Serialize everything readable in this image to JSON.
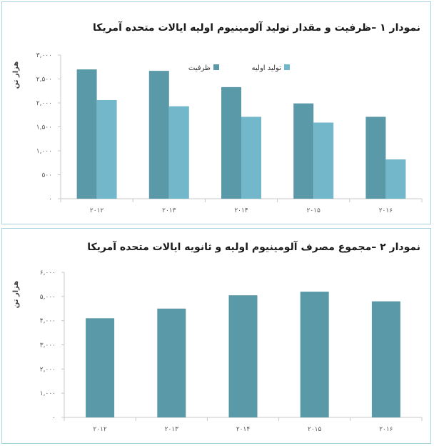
{
  "colors": {
    "series1": "#5a99a8",
    "series2": "#73b7cb",
    "single": "#5a99a8",
    "axis": "#c8c8c8",
    "border": "#a9d3de"
  },
  "chart_data": [
    {
      "type": "bar",
      "title": "نمودار ۱ –ظرفیت و مقدار تولید آلومینیوم اولیه ایالات متحده آمریکا",
      "ylabel": "هزار تن",
      "categories": [
        "۲۰۱۲",
        "۲۰۱۳",
        "۲۰۱۴",
        "۲۰۱۵",
        "۲۰۱۶"
      ],
      "yticks": [
        "۰",
        "۵۰۰",
        "۱,۰۰۰",
        "۱,۵۰۰",
        "۲,۰۰۰",
        "۲,۵۰۰",
        "۳,۰۰۰"
      ],
      "ylim": [
        0,
        3000
      ],
      "legend_position": "top-right",
      "series": [
        {
          "name": "ظرفیت",
          "values": [
            2700,
            2670,
            2330,
            1990,
            1710
          ]
        },
        {
          "name": "تولید اولیه",
          "values": [
            2060,
            1930,
            1710,
            1590,
            820
          ]
        }
      ]
    },
    {
      "type": "bar",
      "title": "نمودار ۲ –مجموع مصرف آلومینیوم اولیه و ثانویه ایالات متحده آمریکا",
      "ylabel": "هزار تن",
      "categories": [
        "۲۰۱۲",
        "۲۰۱۳",
        "۲۰۱۴",
        "۲۰۱۵",
        "۲۰۱۶"
      ],
      "yticks": [
        "۰",
        "۱,۰۰۰",
        "۲,۰۰۰",
        "۳,۰۰۰",
        "۴,۰۰۰",
        "۵,۰۰۰",
        "۶,۰۰۰"
      ],
      "ylim": [
        0,
        6000
      ],
      "series": [
        {
          "values": [
            4100,
            4500,
            5050,
            5200,
            4800
          ]
        }
      ]
    }
  ]
}
